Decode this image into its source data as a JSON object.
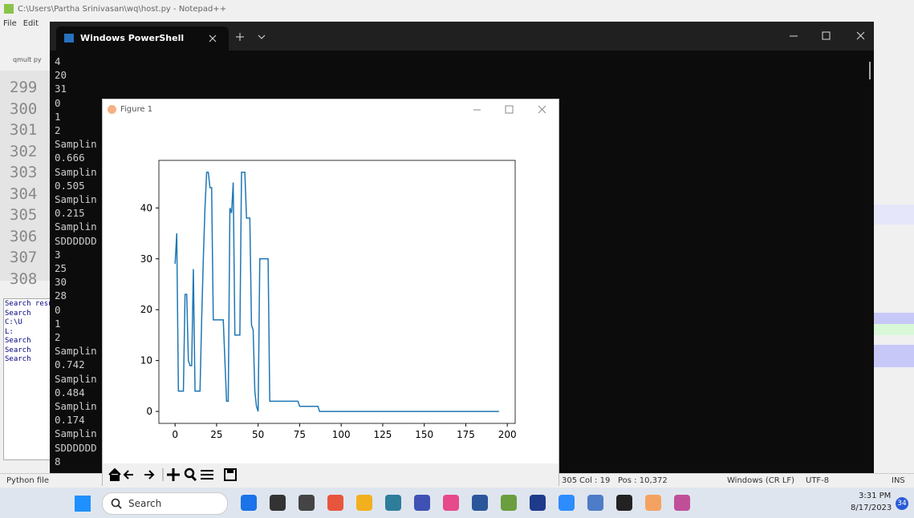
{
  "notepad": {
    "title": "C:\\Users\\Partha Srinivasan\\wq\\host.py - Notepad++",
    "menu": [
      "File",
      "Edit"
    ],
    "tab": "qmult py",
    "line_numbers": [
      "299",
      "300",
      "301",
      "302",
      "303",
      "304",
      "305",
      "306",
      "307",
      "308"
    ],
    "search_panel": [
      "Search resu",
      "Search",
      "C:\\U",
      "L:",
      "Search",
      "Search",
      "Search"
    ],
    "status": {
      "type": "Python file",
      "line": "305",
      "col": "Col : 19",
      "pos": "Pos : 10,372",
      "eol": "Windows (CR LF)",
      "encoding": "UTF-8",
      "mode": "INS"
    }
  },
  "powershell": {
    "tab": "Windows PowerShell",
    "lines": [
      "4",
      "20",
      "31",
      "0",
      "1",
      "2",
      "Samplin",
      "0.666",
      "Samplin",
      "0.505",
      "Samplin",
      "0.215",
      "Samplin",
      "SDDDDDD",
      "3",
      "25",
      "30",
      "28",
      "0",
      "1",
      "2",
      "Samplin",
      "0.742",
      "Samplin",
      "0.484",
      "Samplin",
      "0.174",
      "Samplin",
      "SDDDDDD",
      "8"
    ]
  },
  "figure": {
    "window_title": "Figure 1"
  },
  "chart_data": {
    "type": "line",
    "color": "#1f77b4",
    "x": [
      0,
      1,
      2,
      5,
      6,
      7,
      8,
      9,
      10,
      11,
      12,
      15,
      16,
      17,
      18,
      19,
      20,
      21,
      22,
      23,
      29,
      30,
      31,
      32,
      33,
      34,
      35,
      36,
      39,
      40,
      42,
      43,
      45,
      46,
      47,
      48,
      49,
      50,
      51,
      56,
      57,
      74,
      75,
      86,
      87,
      195
    ],
    "values": [
      29,
      35,
      4,
      4,
      23,
      23,
      10,
      9,
      9,
      28,
      4,
      4,
      18,
      30,
      40,
      47,
      47,
      44,
      44,
      18,
      18,
      10,
      2,
      2,
      40,
      39,
      45,
      15,
      15,
      47,
      47,
      38,
      38,
      17,
      16,
      4,
      1,
      0,
      30,
      30,
      2,
      2,
      1,
      1,
      0,
      0
    ],
    "xlim": [
      -9.75,
      204.75
    ],
    "xticks": [
      0,
      25,
      50,
      75,
      100,
      125,
      150,
      175,
      200
    ],
    "ylim": [
      -2.35,
      49.35
    ],
    "yticks": [
      0,
      10,
      20,
      30,
      40
    ],
    "grid": false
  },
  "taskbar": {
    "search": "Search",
    "time": "3:31 PM",
    "date": "8/17/2023",
    "badge": "34"
  }
}
